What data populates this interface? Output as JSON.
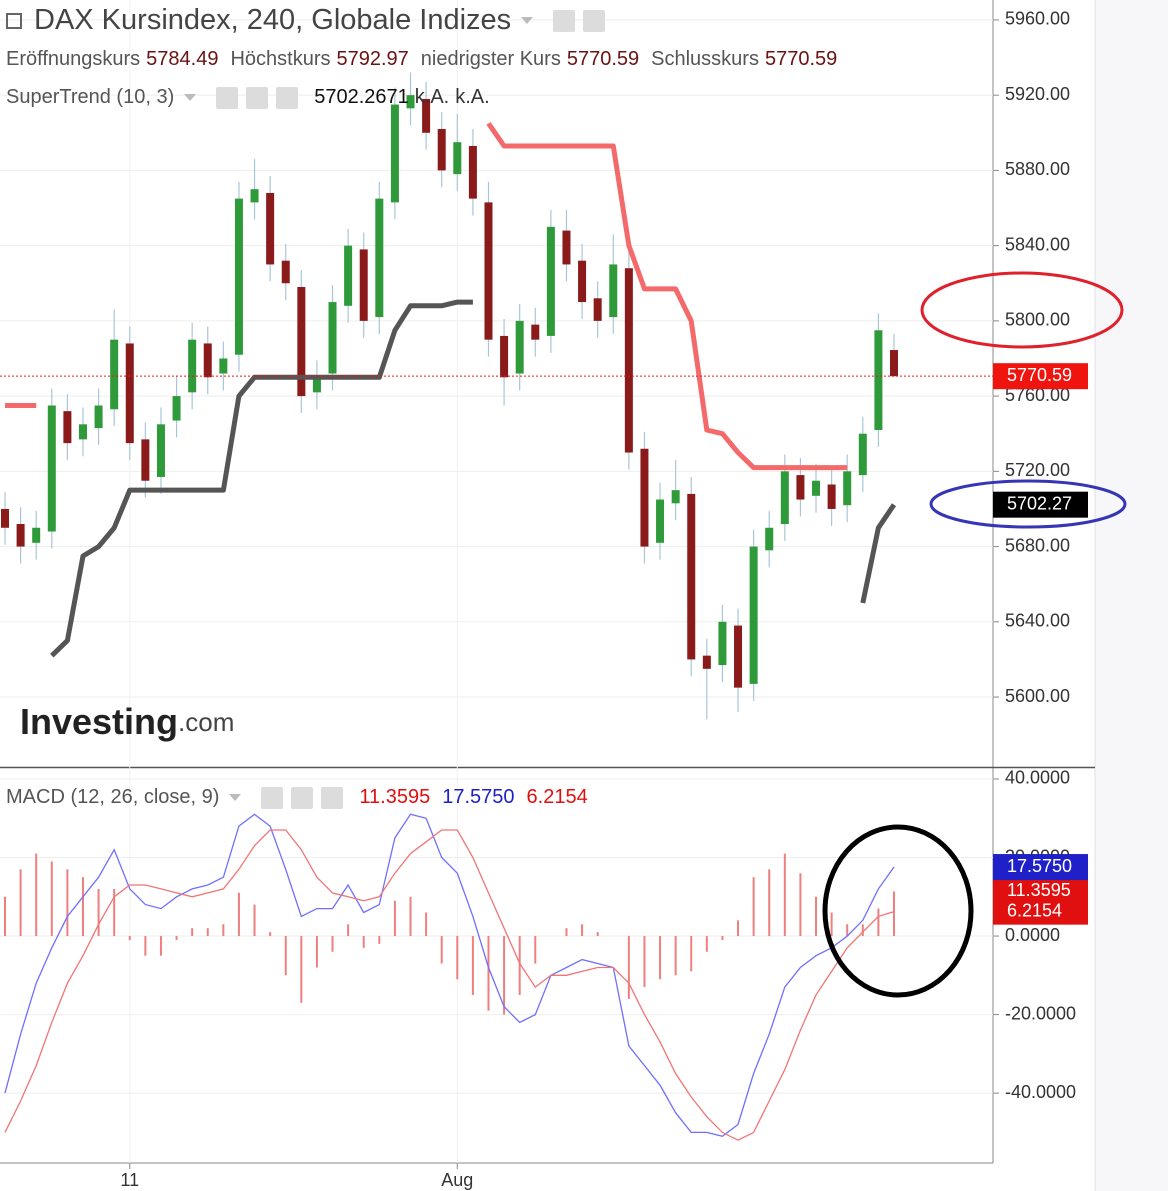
{
  "chart_data": [
    {
      "type": "candlestick",
      "title": "DAX Kursindex, 240, Globale Indizes",
      "ohlc_legend": [
        {
          "name": "Eröffnungskurs",
          "value": 5784.49
        },
        {
          "name": "Höchstkurs",
          "value": 5792.97
        },
        {
          "name": "niedrigster Kurs",
          "value": 5770.59
        },
        {
          "name": "Schlusskurs",
          "value": 5770.59
        }
      ],
      "categories": [
        null,
        null,
        null,
        null,
        null,
        null,
        null,
        null,
        "11",
        null,
        null,
        null,
        null,
        null,
        null,
        null,
        null,
        null,
        null,
        null,
        null,
        null,
        null,
        null,
        null,
        null,
        null,
        null,
        null,
        "Aug",
        null,
        null,
        null,
        null,
        null,
        null,
        null,
        null,
        null,
        null,
        null,
        null,
        null,
        null,
        null,
        null,
        null,
        null,
        null,
        null,
        null,
        null,
        null,
        null,
        null,
        null,
        null,
        null
      ],
      "open": [
        5700,
        5692,
        5682,
        5688,
        5752,
        5737,
        5743,
        5753,
        5788,
        5737,
        5717,
        5747,
        5762,
        5788,
        5772,
        5782,
        5863,
        5868,
        5832,
        5818,
        5762,
        5772,
        5808,
        5838,
        5802,
        5863,
        5913,
        5918,
        5902,
        5878,
        5893,
        5863,
        5792,
        5772,
        5798,
        5792,
        5848,
        5832,
        5812,
        5802,
        5828,
        5732,
        5682,
        5703,
        5708,
        5622,
        5617,
        5638,
        5607,
        5678,
        5692,
        5718,
        5707,
        5713,
        5702,
        5718,
        5742,
        5784.49
      ],
      "high": [
        5709,
        5701,
        5699,
        5764,
        5761,
        5754,
        5764,
        5806,
        5797,
        5746,
        5754,
        5771,
        5799,
        5797,
        5789,
        5874,
        5886,
        5877,
        5841,
        5827,
        5779,
        5819,
        5849,
        5847,
        5874,
        5924,
        5932,
        5927,
        5911,
        5910,
        5902,
        5874,
        5801,
        5809,
        5807,
        5859,
        5859,
        5841,
        5821,
        5846,
        5837,
        5741,
        5714,
        5726,
        5717,
        5631,
        5649,
        5647,
        5689,
        5699,
        5729,
        5727,
        5724,
        5722,
        5729,
        5749,
        5804,
        5792.97
      ],
      "low": [
        5681,
        5671,
        5673,
        5679,
        5726,
        5728,
        5734,
        5744,
        5726,
        5706,
        5708,
        5738,
        5753,
        5761,
        5763,
        5773,
        5854,
        5821,
        5811,
        5751,
        5753,
        5763,
        5799,
        5791,
        5793,
        5854,
        5904,
        5891,
        5871,
        5869,
        5856,
        5781,
        5755,
        5763,
        5781,
        5783,
        5821,
        5801,
        5791,
        5793,
        5721,
        5671,
        5673,
        5694,
        5611,
        5588,
        5608,
        5592,
        5598,
        5669,
        5683,
        5696,
        5698,
        5691,
        5693,
        5709,
        5733,
        5770.59
      ],
      "close": [
        5690,
        5680,
        5690,
        5755,
        5735,
        5745,
        5755,
        5790,
        5735,
        5715,
        5745,
        5760,
        5790,
        5770,
        5780,
        5865,
        5870,
        5830,
        5820,
        5760,
        5770,
        5810,
        5840,
        5800,
        5865,
        5915,
        5920,
        5900,
        5880,
        5895,
        5865,
        5790,
        5770,
        5800,
        5790,
        5850,
        5830,
        5810,
        5800,
        5830,
        5730,
        5680,
        5705,
        5710,
        5620,
        5615,
        5640,
        5605,
        5680,
        5690,
        5720,
        5705,
        5715,
        5700,
        5720,
        5740,
        5795,
        5770.59
      ],
      "up_color": "#2e9a3a",
      "down_color": "#8b1a1a",
      "indicator": {
        "name": "SuperTrend (10, 3)",
        "value": 5702.2671,
        "status": [
          "k.A.",
          "k.A."
        ],
        "series": [
          {
            "color": "#f46a6a",
            "values": [
              5755,
              5755,
              5755,
              null,
              null,
              null,
              null,
              null,
              null,
              null,
              null,
              null,
              null,
              null,
              null,
              null,
              null,
              null,
              null,
              null,
              null,
              null,
              null,
              null,
              null,
              null,
              null,
              null,
              null,
              null,
              null,
              5905,
              5893,
              5893,
              5893,
              5893,
              5893,
              5893,
              5893,
              5893,
              5840,
              5817,
              5817,
              5817,
              5800,
              5742,
              5740,
              5730,
              5722,
              5722,
              5722,
              5722,
              5722,
              5722,
              5722,
              null,
              null,
              null
            ]
          },
          {
            "color": "#555555",
            "values": [
              null,
              null,
              null,
              5622,
              5630,
              5675,
              5680,
              5690,
              5710,
              5710,
              5710,
              5710,
              5710,
              5710,
              5710,
              5760,
              5770,
              5770,
              5770,
              5770,
              5770,
              5770,
              5770,
              5770,
              5770,
              5795,
              5808,
              5808,
              5808,
              5810,
              5810,
              null,
              null,
              null,
              null,
              null,
              null,
              null,
              null,
              null,
              null,
              null,
              null,
              null,
              null,
              null,
              null,
              null,
              null,
              null,
              null,
              null,
              null,
              null,
              null,
              5650,
              5690,
              5702.27
            ]
          }
        ]
      },
      "tags": [
        {
          "value": 5770.59,
          "color": "#f0140f"
        },
        {
          "value": 5702.27,
          "color": "#000000"
        }
      ],
      "ylim": [
        5562.8,
        5970.6
      ],
      "yticks": [
        {
          "value": 5960,
          "label": "5960.00"
        },
        {
          "value": 5920,
          "label": "5920.00"
        },
        {
          "value": 5880,
          "label": "5880.00"
        },
        {
          "value": 5840,
          "label": "5840.00"
        },
        {
          "value": 5800,
          "label": "5800.00"
        },
        {
          "value": 5760,
          "label": "5760.00"
        },
        {
          "value": 5720,
          "label": "5720.00"
        },
        {
          "value": 5680,
          "label": "5680.00"
        },
        {
          "value": 5640,
          "label": "5640.00"
        },
        {
          "value": 5600,
          "label": "5600.00"
        }
      ],
      "grid": true,
      "watermark": {
        "brand": "Investing",
        "suffix": ".com"
      }
    },
    {
      "type": "line",
      "title": "MACD (12, 26, close, 9)",
      "header_values": [
        {
          "value": 11.3595,
          "label": "11.3595",
          "color": "#e01010"
        },
        {
          "value": 17.575,
          "label": "17.5750",
          "color": "#2020c8"
        },
        {
          "value": 6.2154,
          "label": "6.2154",
          "color": "#e01010"
        }
      ],
      "histogram": {
        "color": "#ee7f7f",
        "values": [
          10,
          17,
          21,
          19,
          17,
          15,
          12,
          12,
          -1,
          -5,
          -5,
          -1,
          2,
          2,
          3,
          11,
          8,
          1,
          -10,
          -17,
          -8,
          -4,
          3,
          -3,
          -2,
          9,
          10,
          6,
          -7,
          -11,
          -15,
          -19,
          -20,
          -15,
          -7,
          0,
          2,
          3,
          1,
          0,
          -16,
          -13,
          -11,
          -10,
          -9,
          -4,
          -1,
          4,
          15,
          17,
          21,
          16,
          10,
          6,
          3,
          3,
          7,
          11.3595
        ]
      },
      "series": [
        {
          "color": "#6f6fff",
          "values": [
            -40,
            -25,
            -12,
            -3,
            5,
            10,
            15,
            22,
            12,
            8,
            7,
            10,
            12,
            13,
            15,
            28,
            31,
            28,
            17,
            5,
            7,
            7,
            13,
            6,
            8,
            25,
            31,
            30,
            20,
            16,
            5,
            -8,
            -18,
            -22,
            -20,
            -10,
            -8,
            -6,
            -7,
            -8,
            -28,
            -33,
            -38,
            -45,
            -50,
            -50,
            -51,
            -48,
            -35,
            -25,
            -13,
            -8,
            -5,
            -3,
            0,
            4,
            12,
            17.575
          ]
        },
        {
          "color": "#f07575",
          "values": [
            -50,
            -42,
            -33,
            -22,
            -12,
            -5,
            3,
            10,
            13,
            13,
            12,
            11,
            10,
            11,
            12,
            17,
            23,
            27,
            27,
            22,
            15,
            11,
            10,
            9,
            10,
            16,
            21,
            24,
            27,
            27,
            20,
            11,
            2,
            -7,
            -13,
            -10,
            -10,
            -9,
            -8,
            -8,
            -12,
            -20,
            -27,
            -35,
            -41,
            -46,
            -50,
            -52,
            -50,
            -42,
            -34,
            -24,
            -15,
            -9,
            -3,
            1,
            5,
            6.2154
          ]
        }
      ],
      "ylim": [
        -57.8,
        42.8
      ],
      "yticks": [
        {
          "value": 40,
          "label": "40.0000"
        },
        {
          "value": 20,
          "label": "20.0000"
        },
        {
          "value": 0,
          "label": "0.0000"
        },
        {
          "value": -20,
          "label": "-20.0000"
        },
        {
          "value": -40,
          "label": "-40.0000"
        }
      ],
      "grid": true
    }
  ]
}
